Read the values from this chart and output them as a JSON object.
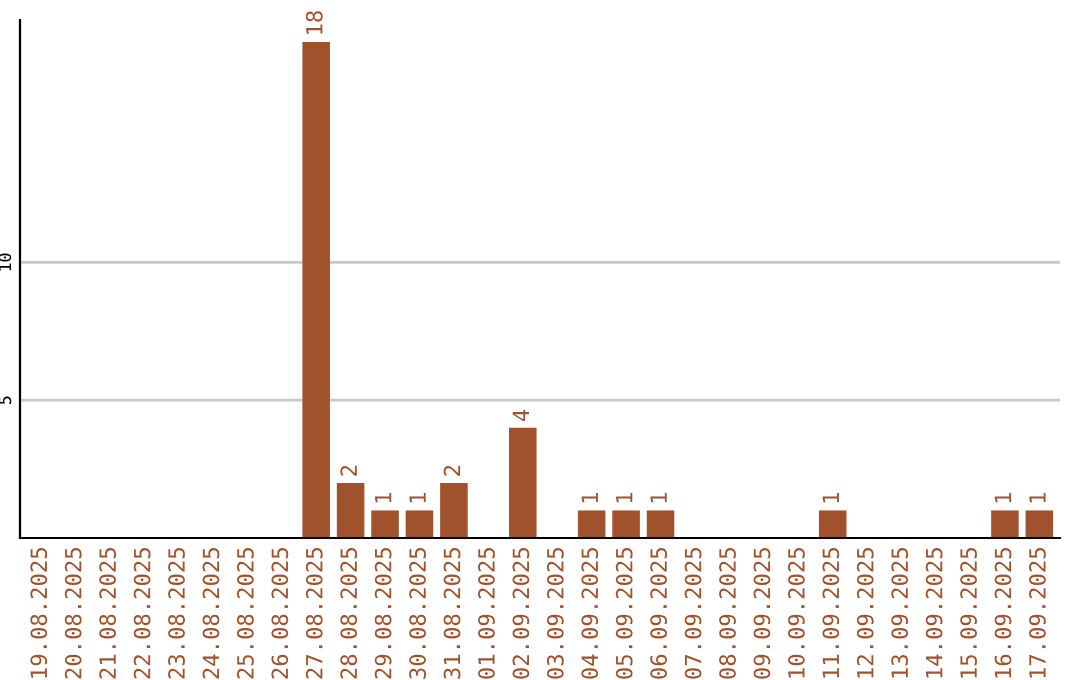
{
  "chart_data": {
    "type": "bar",
    "categories": [
      "19.08.2025",
      "20.08.2025",
      "21.08.2025",
      "22.08.2025",
      "23.08.2025",
      "24.08.2025",
      "25.08.2025",
      "26.08.2025",
      "27.08.2025",
      "28.08.2025",
      "29.08.2025",
      "30.08.2025",
      "31.08.2025",
      "01.09.2025",
      "02.09.2025",
      "03.09.2025",
      "04.09.2025",
      "05.09.2025",
      "06.09.2025",
      "07.09.2025",
      "08.09.2025",
      "09.09.2025",
      "10.09.2025",
      "11.09.2025",
      "12.09.2025",
      "13.09.2025",
      "14.09.2025",
      "15.09.2025",
      "16.09.2025",
      "17.09.2025"
    ],
    "values": [
      0,
      0,
      0,
      0,
      0,
      0,
      0,
      0,
      18,
      2,
      1,
      1,
      2,
      0,
      4,
      0,
      1,
      1,
      1,
      0,
      0,
      0,
      0,
      1,
      0,
      0,
      0,
      0,
      1,
      1
    ],
    "value_labels": [
      null,
      null,
      null,
      null,
      null,
      null,
      null,
      null,
      "18",
      "2",
      "1",
      "1",
      "2",
      null,
      "4",
      null,
      "1",
      "1",
      "1",
      null,
      null,
      null,
      null,
      "1",
      null,
      null,
      null,
      null,
      "1",
      "1"
    ],
    "color": "#a0522d",
    "ylim": [
      0,
      18.8
    ],
    "yticks": [
      5,
      10
    ],
    "grid": "y",
    "legend": false
  }
}
